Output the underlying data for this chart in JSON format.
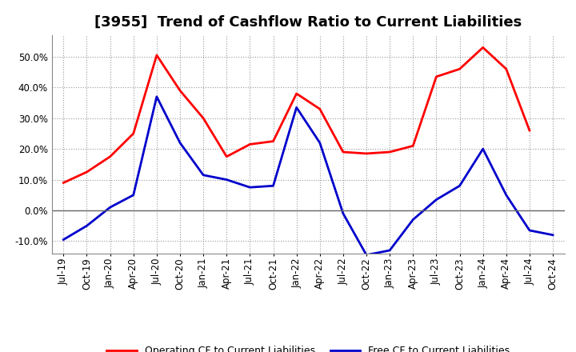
{
  "title": "[3955]  Trend of Cashflow Ratio to Current Liabilities",
  "x_labels": [
    "Jul-19",
    "Oct-19",
    "Jan-20",
    "Apr-20",
    "Jul-20",
    "Oct-20",
    "Jan-21",
    "Apr-21",
    "Jul-21",
    "Oct-21",
    "Jan-22",
    "Apr-22",
    "Jul-22",
    "Oct-22",
    "Jan-23",
    "Apr-23",
    "Jul-23",
    "Oct-23",
    "Jan-24",
    "Apr-24",
    "Jul-24",
    "Oct-24"
  ],
  "operating_cf": [
    9.0,
    12.5,
    17.5,
    25.0,
    50.5,
    39.0,
    30.0,
    17.5,
    21.5,
    22.5,
    38.0,
    33.0,
    19.0,
    18.5,
    19.0,
    21.0,
    43.5,
    46.0,
    53.0,
    46.0,
    26.0,
    null
  ],
  "free_cf": [
    -9.5,
    -5.0,
    1.0,
    5.0,
    37.0,
    22.0,
    11.5,
    10.0,
    7.5,
    8.0,
    33.5,
    22.0,
    -1.0,
    -14.5,
    -13.0,
    -3.0,
    3.5,
    8.0,
    20.0,
    5.0,
    -6.5,
    -8.0
  ],
  "operating_color": "#ff0000",
  "free_color": "#0000cc",
  "ylim": [
    -14,
    57
  ],
  "yticks": [
    -10,
    0,
    10,
    20,
    30,
    40,
    50
  ],
  "background_color": "#ffffff",
  "plot_bg_color": "#ffffff",
  "grid_color": "#999999",
  "legend_op": "Operating CF to Current Liabilities",
  "legend_free": "Free CF to Current Liabilities",
  "title_fontsize": 13,
  "tick_fontsize": 8.5
}
